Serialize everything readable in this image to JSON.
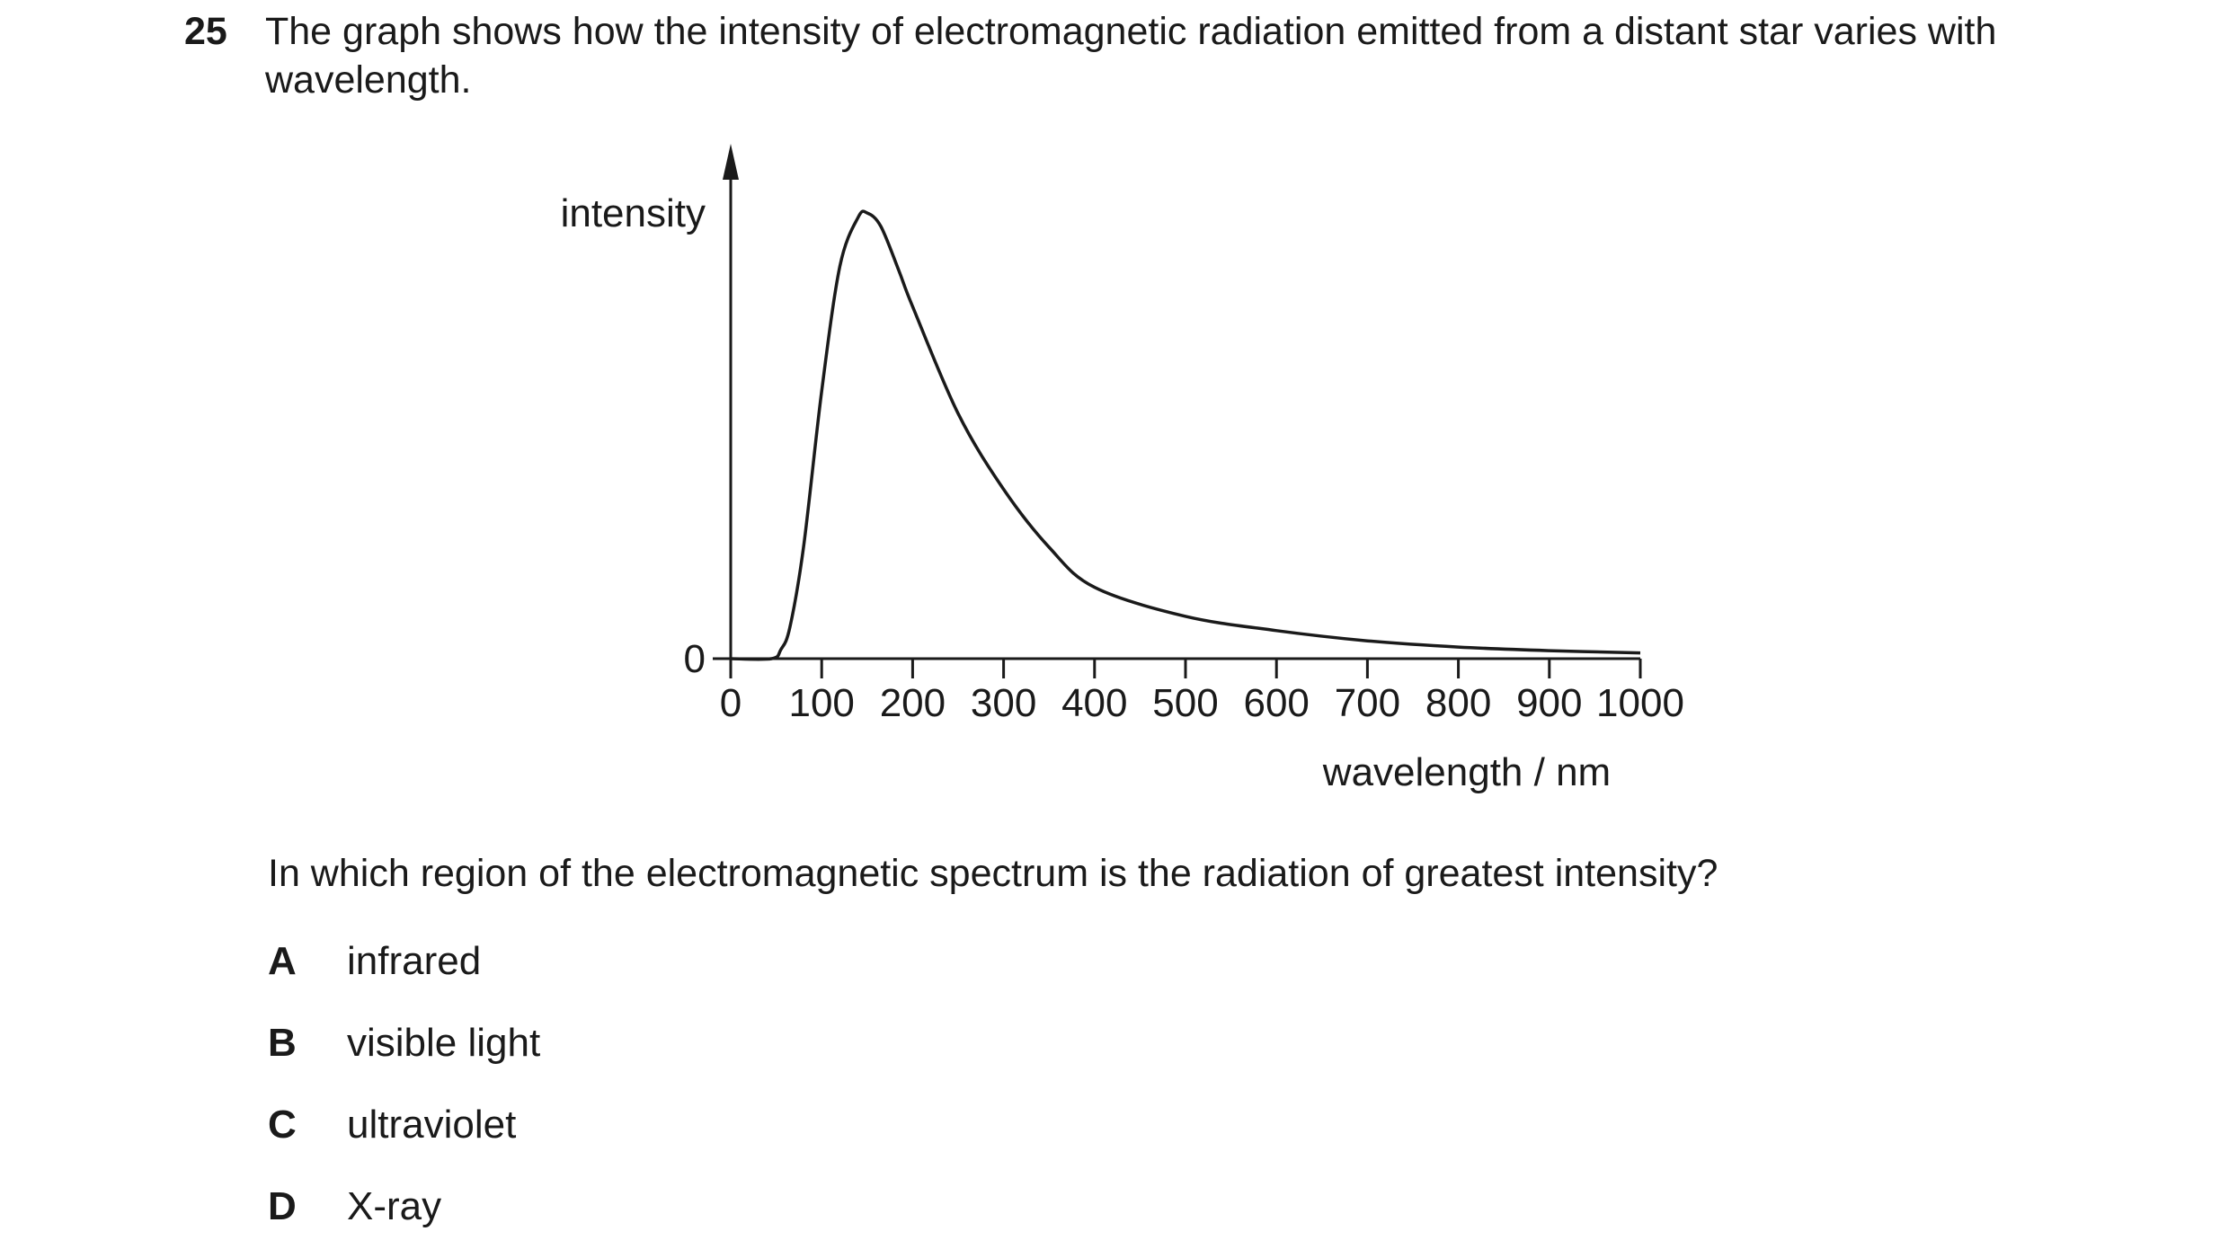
{
  "question": {
    "number": "25",
    "stem": "The graph shows how the intensity of electromagnetic radiation emitted from a distant star varies with wavelength.",
    "prompt": "In which region of the electromagnetic spectrum is the radiation of greatest intensity?",
    "options": [
      {
        "letter": "A",
        "text": "infrared"
      },
      {
        "letter": "B",
        "text": "visible light"
      },
      {
        "letter": "C",
        "text": "ultraviolet"
      },
      {
        "letter": "D",
        "text": "X-ray"
      }
    ]
  },
  "chart_data": {
    "type": "line",
    "title": "",
    "xlabel": "wavelength / nm",
    "ylabel": "intensity",
    "xlim": [
      0,
      1000
    ],
    "x_ticks": [
      0,
      100,
      200,
      300,
      400,
      500,
      600,
      700,
      800,
      900,
      1000
    ],
    "y_tick_labels": [
      "0"
    ],
    "grid": false,
    "y_values_shown": false,
    "series": [
      {
        "points": [
          [
            0,
            0
          ],
          [
            45,
            0
          ],
          [
            55,
            0.02
          ],
          [
            65,
            0.07
          ],
          [
            80,
            0.25
          ],
          [
            100,
            0.6
          ],
          [
            120,
            0.88
          ],
          [
            140,
            0.99
          ],
          [
            150,
            1.0
          ],
          [
            165,
            0.97
          ],
          [
            185,
            0.87
          ],
          [
            200,
            0.79
          ],
          [
            250,
            0.55
          ],
          [
            300,
            0.38
          ],
          [
            350,
            0.25
          ],
          [
            400,
            0.16
          ],
          [
            500,
            0.095
          ],
          [
            600,
            0.063
          ],
          [
            700,
            0.04
          ],
          [
            800,
            0.026
          ],
          [
            900,
            0.018
          ],
          [
            1000,
            0.013
          ]
        ]
      }
    ]
  }
}
